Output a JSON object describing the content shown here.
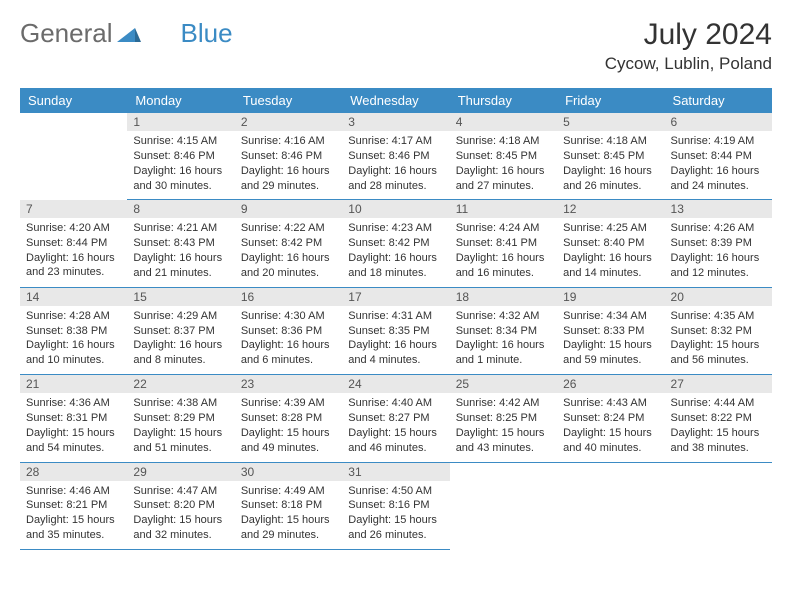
{
  "logo": {
    "text1": "General",
    "text2": "Blue"
  },
  "title": "July 2024",
  "location": "Cycow, Lublin, Poland",
  "colors": {
    "header_bg": "#3b8bc4",
    "header_text": "#ffffff",
    "daynum_bg": "#e8e8e8",
    "border": "#3b8bc4",
    "logo_gray": "#6b6b6b",
    "logo_blue": "#3b8bc4"
  },
  "weekdays": [
    "Sunday",
    "Monday",
    "Tuesday",
    "Wednesday",
    "Thursday",
    "Friday",
    "Saturday"
  ],
  "weeks": [
    [
      null,
      {
        "n": "1",
        "sr": "4:15 AM",
        "ss": "8:46 PM",
        "dl": "16 hours and 30 minutes."
      },
      {
        "n": "2",
        "sr": "4:16 AM",
        "ss": "8:46 PM",
        "dl": "16 hours and 29 minutes."
      },
      {
        "n": "3",
        "sr": "4:17 AM",
        "ss": "8:46 PM",
        "dl": "16 hours and 28 minutes."
      },
      {
        "n": "4",
        "sr": "4:18 AM",
        "ss": "8:45 PM",
        "dl": "16 hours and 27 minutes."
      },
      {
        "n": "5",
        "sr": "4:18 AM",
        "ss": "8:45 PM",
        "dl": "16 hours and 26 minutes."
      },
      {
        "n": "6",
        "sr": "4:19 AM",
        "ss": "8:44 PM",
        "dl": "16 hours and 24 minutes."
      }
    ],
    [
      {
        "n": "7",
        "sr": "4:20 AM",
        "ss": "8:44 PM",
        "dl": "16 hours and 23 minutes."
      },
      {
        "n": "8",
        "sr": "4:21 AM",
        "ss": "8:43 PM",
        "dl": "16 hours and 21 minutes."
      },
      {
        "n": "9",
        "sr": "4:22 AM",
        "ss": "8:42 PM",
        "dl": "16 hours and 20 minutes."
      },
      {
        "n": "10",
        "sr": "4:23 AM",
        "ss": "8:42 PM",
        "dl": "16 hours and 18 minutes."
      },
      {
        "n": "11",
        "sr": "4:24 AM",
        "ss": "8:41 PM",
        "dl": "16 hours and 16 minutes."
      },
      {
        "n": "12",
        "sr": "4:25 AM",
        "ss": "8:40 PM",
        "dl": "16 hours and 14 minutes."
      },
      {
        "n": "13",
        "sr": "4:26 AM",
        "ss": "8:39 PM",
        "dl": "16 hours and 12 minutes."
      }
    ],
    [
      {
        "n": "14",
        "sr": "4:28 AM",
        "ss": "8:38 PM",
        "dl": "16 hours and 10 minutes."
      },
      {
        "n": "15",
        "sr": "4:29 AM",
        "ss": "8:37 PM",
        "dl": "16 hours and 8 minutes."
      },
      {
        "n": "16",
        "sr": "4:30 AM",
        "ss": "8:36 PM",
        "dl": "16 hours and 6 minutes."
      },
      {
        "n": "17",
        "sr": "4:31 AM",
        "ss": "8:35 PM",
        "dl": "16 hours and 4 minutes."
      },
      {
        "n": "18",
        "sr": "4:32 AM",
        "ss": "8:34 PM",
        "dl": "16 hours and 1 minute."
      },
      {
        "n": "19",
        "sr": "4:34 AM",
        "ss": "8:33 PM",
        "dl": "15 hours and 59 minutes."
      },
      {
        "n": "20",
        "sr": "4:35 AM",
        "ss": "8:32 PM",
        "dl": "15 hours and 56 minutes."
      }
    ],
    [
      {
        "n": "21",
        "sr": "4:36 AM",
        "ss": "8:31 PM",
        "dl": "15 hours and 54 minutes."
      },
      {
        "n": "22",
        "sr": "4:38 AM",
        "ss": "8:29 PM",
        "dl": "15 hours and 51 minutes."
      },
      {
        "n": "23",
        "sr": "4:39 AM",
        "ss": "8:28 PM",
        "dl": "15 hours and 49 minutes."
      },
      {
        "n": "24",
        "sr": "4:40 AM",
        "ss": "8:27 PM",
        "dl": "15 hours and 46 minutes."
      },
      {
        "n": "25",
        "sr": "4:42 AM",
        "ss": "8:25 PM",
        "dl": "15 hours and 43 minutes."
      },
      {
        "n": "26",
        "sr": "4:43 AM",
        "ss": "8:24 PM",
        "dl": "15 hours and 40 minutes."
      },
      {
        "n": "27",
        "sr": "4:44 AM",
        "ss": "8:22 PM",
        "dl": "15 hours and 38 minutes."
      }
    ],
    [
      {
        "n": "28",
        "sr": "4:46 AM",
        "ss": "8:21 PM",
        "dl": "15 hours and 35 minutes."
      },
      {
        "n": "29",
        "sr": "4:47 AM",
        "ss": "8:20 PM",
        "dl": "15 hours and 32 minutes."
      },
      {
        "n": "30",
        "sr": "4:49 AM",
        "ss": "8:18 PM",
        "dl": "15 hours and 29 minutes."
      },
      {
        "n": "31",
        "sr": "4:50 AM",
        "ss": "8:16 PM",
        "dl": "15 hours and 26 minutes."
      },
      null,
      null,
      null
    ]
  ],
  "labels": {
    "sunrise": "Sunrise:",
    "sunset": "Sunset:",
    "daylight": "Daylight:"
  }
}
